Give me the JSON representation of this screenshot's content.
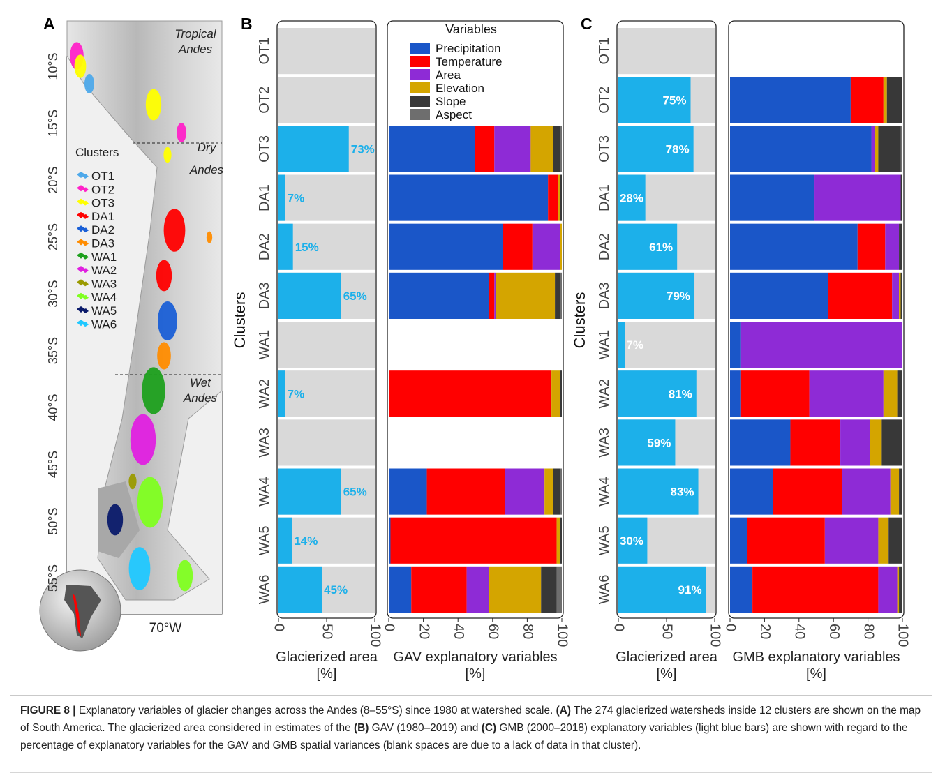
{
  "map": {
    "panel_label": "A",
    "regions": [
      [
        "Tropical",
        "Andes"
      ],
      [
        "Dry",
        "Andes"
      ],
      [
        "Wet",
        "Andes"
      ]
    ],
    "lat_labels": [
      "10°S",
      "15°S",
      "20°S",
      "25°S",
      "30°S",
      "35°S",
      "40°S",
      "45°S",
      "50°S",
      "55°S"
    ],
    "lon_label": "70°W",
    "legend_title": "Clusters",
    "clusters": [
      {
        "name": "OT1",
        "color": "#4ea9ea"
      },
      {
        "name": "OT2",
        "color": "#ff22c8"
      },
      {
        "name": "OT3",
        "color": "#ffff00"
      },
      {
        "name": "DA1",
        "color": "#ff0000"
      },
      {
        "name": "DA2",
        "color": "#1a5fd6"
      },
      {
        "name": "DA3",
        "color": "#ff8c00"
      },
      {
        "name": "WA1",
        "color": "#1ea01e"
      },
      {
        "name": "WA2",
        "color": "#e020e0"
      },
      {
        "name": "WA3",
        "color": "#9a9a00"
      },
      {
        "name": "WA4",
        "color": "#80ff20"
      },
      {
        "name": "WA5",
        "color": "#0a1a6a"
      },
      {
        "name": "WA6",
        "color": "#20c8ff"
      }
    ]
  },
  "chart_data": [
    {
      "type": "hbar",
      "panel_label": "B",
      "ylabel": "Clusters",
      "xlabel": "Glacierized area [%]",
      "color": "#1cb0ea",
      "label_color": "#1cb0ea",
      "label_position": "outside",
      "categories": [
        "OT1",
        "OT2",
        "OT3",
        "DA1",
        "DA2",
        "DA3",
        "WA1",
        "WA2",
        "WA3",
        "WA4",
        "WA5",
        "WA6"
      ],
      "values": [
        null,
        null,
        73,
        7,
        15,
        65,
        null,
        7,
        null,
        65,
        14,
        45
      ],
      "value_labels": [
        null,
        null,
        "73%",
        "7%",
        "15%",
        "65%",
        null,
        "7%",
        null,
        "65%",
        "14%",
        "45%"
      ],
      "xlim": [
        0,
        100
      ],
      "xticks": [
        0,
        50,
        100
      ]
    },
    {
      "type": "stacked_hbar",
      "xlabel": "GAV explanatory variables [%]",
      "legend_title": "Variables",
      "legend": true,
      "xlim": [
        0,
        100
      ],
      "xticks": [
        0,
        20,
        40,
        60,
        80,
        100
      ],
      "series": [
        {
          "name": "Precipitation",
          "color": "#1a56c8",
          "values": [
            null,
            null,
            50,
            92,
            66,
            58,
            null,
            0,
            null,
            22,
            1,
            13
          ]
        },
        {
          "name": "Temperature",
          "color": "#ff0000",
          "values": [
            null,
            null,
            11,
            6,
            17,
            3,
            null,
            94,
            null,
            45,
            96,
            32
          ]
        },
        {
          "name": "Area",
          "color": "#8e2bd6",
          "values": [
            null,
            null,
            21,
            0,
            16,
            1,
            null,
            0,
            null,
            23,
            0,
            13
          ]
        },
        {
          "name": "Elevation",
          "color": "#d4a500",
          "values": [
            null,
            null,
            13,
            1,
            1,
            34,
            null,
            5,
            null,
            5,
            2,
            30
          ]
        },
        {
          "name": "Slope",
          "color": "#383838",
          "values": [
            null,
            null,
            4,
            1,
            0,
            3,
            null,
            1,
            null,
            4,
            1,
            9
          ]
        },
        {
          "name": "Aspect",
          "color": "#6e6e6e",
          "values": [
            null,
            null,
            1,
            0,
            0,
            1,
            null,
            0,
            null,
            1,
            0,
            3
          ]
        }
      ]
    },
    {
      "type": "hbar",
      "panel_label": "C",
      "ylabel": "Clusters",
      "xlabel": "Glacierized area [%]",
      "color": "#1cb0ea",
      "label_color": "#ffffff",
      "label_position": "inside",
      "categories": [
        "OT1",
        "OT2",
        "OT3",
        "DA1",
        "DA2",
        "DA3",
        "WA1",
        "WA2",
        "WA3",
        "WA4",
        "WA5",
        "WA6"
      ],
      "values": [
        null,
        75,
        78,
        28,
        61,
        79,
        7,
        81,
        59,
        83,
        30,
        91
      ],
      "value_labels": [
        null,
        "75%",
        "78%",
        "28%",
        "61%",
        "79%",
        "7%",
        "81%",
        "59%",
        "83%",
        "30%",
        "91%"
      ],
      "xlim": [
        0,
        100
      ],
      "xticks": [
        0,
        50,
        100
      ]
    },
    {
      "type": "stacked_hbar",
      "xlabel": "GMB explanatory variables [%]",
      "legend": false,
      "xlim": [
        0,
        100
      ],
      "xticks": [
        0,
        20,
        40,
        60,
        80,
        100
      ],
      "series": [
        {
          "color": "#1a56c8",
          "values": [
            null,
            70,
            82,
            49,
            74,
            57,
            6,
            6,
            35,
            25,
            10,
            13
          ]
        },
        {
          "color": "#ff0000",
          "values": [
            null,
            19,
            0,
            0,
            16,
            37,
            0,
            40,
            29,
            40,
            45,
            73
          ]
        },
        {
          "color": "#8e2bd6",
          "values": [
            null,
            0,
            2,
            50,
            8,
            4,
            94,
            43,
            17,
            28,
            31,
            11
          ]
        },
        {
          "color": "#d4a500",
          "values": [
            null,
            2,
            2,
            0,
            0,
            1,
            0,
            8,
            7,
            5,
            6,
            1
          ]
        },
        {
          "color": "#383838",
          "values": [
            null,
            9,
            13,
            1,
            2,
            1,
            0,
            3,
            12,
            2,
            8,
            2
          ]
        },
        {
          "color": "#6e6e6e",
          "values": [
            null,
            0,
            1,
            0,
            0,
            0,
            0,
            0,
            0,
            0,
            0,
            0
          ]
        }
      ]
    }
  ],
  "caption": [
    "FIGURE 8 |",
    " Explanatory variables of glacier changes across the Andes (8–55°S) since 1980 at watershed scale. ",
    "(A)",
    " The 274 glacierized watersheds inside 12 clusters are shown on the map of South America. The glacierized area considered in estimates of the ",
    "(B)",
    " GAV (1980–2019) and ",
    "(C)",
    " GMB (2000–2018) explanatory variables (light blue bars) are shown with regard to the percentage of explanatory variables for the GAV and GMB spatial variances (blank spaces are due to a lack of data in that cluster)."
  ]
}
